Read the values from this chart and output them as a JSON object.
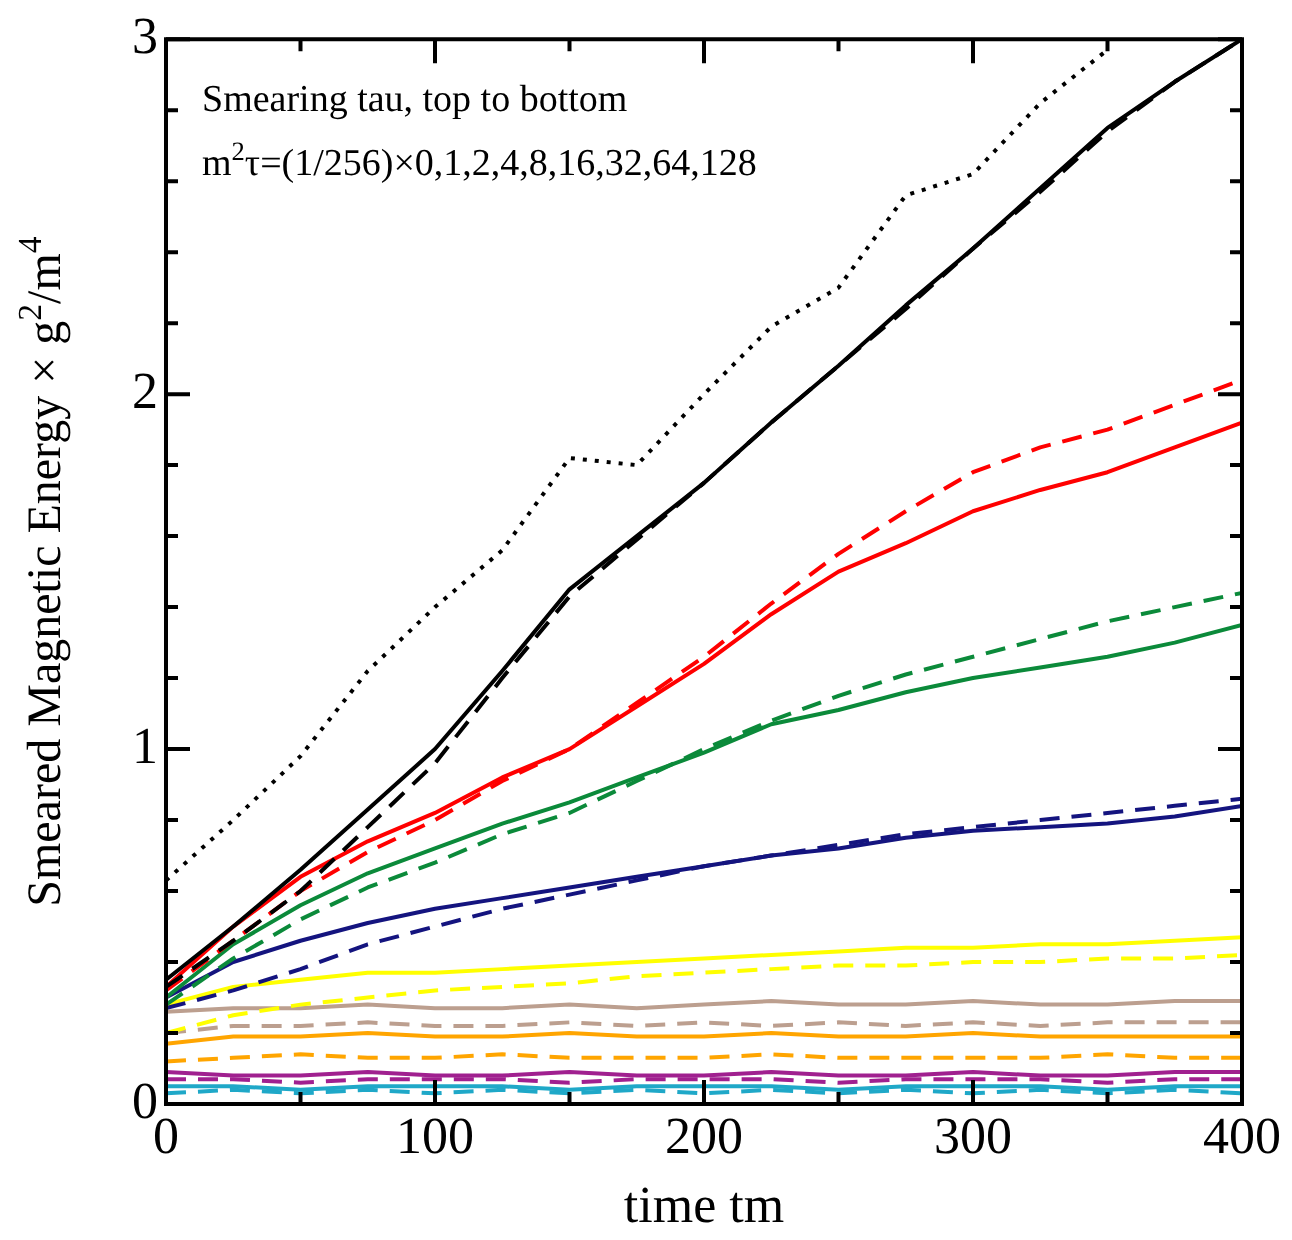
{
  "chart_data": {
    "type": "line",
    "xlabel": "time tm",
    "ylabel": "Smeared Magnetic Energy × g$^{2}$/m$^{4}$",
    "annotations": [
      "Smearing tau, top to bottom",
      "m$^{2}$τ=(1/256)×0,1,2,4,8,16,32,64,128"
    ],
    "x": [
      0,
      25,
      50,
      75,
      100,
      125,
      150,
      175,
      200,
      225,
      250,
      275,
      300,
      325,
      350,
      375,
      400
    ],
    "xlim": [
      0,
      400
    ],
    "ylim": [
      0,
      3
    ],
    "xticks": [
      0,
      {
        "value": 50,
        "label": null
      },
      100,
      {
        "value": 150,
        "label": null
      },
      200,
      {
        "value": 250,
        "label": null
      },
      300,
      {
        "value": 350,
        "label": null
      },
      400
    ],
    "yticks": [
      0,
      {
        "value": 0.2,
        "label": null
      },
      {
        "value": 0.4,
        "label": null
      },
      {
        "value": 0.6,
        "label": null
      },
      {
        "value": 0.8,
        "label": null
      },
      1,
      {
        "value": 1.2,
        "label": null
      },
      {
        "value": 1.4,
        "label": null
      },
      {
        "value": 1.6,
        "label": null
      },
      {
        "value": 1.8,
        "label": null
      },
      2,
      {
        "value": 2.2,
        "label": null
      },
      {
        "value": 2.4,
        "label": null
      },
      {
        "value": 2.6,
        "label": null
      },
      {
        "value": 2.8,
        "label": null
      },
      3
    ],
    "grid": false,
    "legend": false,
    "marker": "none",
    "series": [
      {
        "color": "#000000",
        "line_style": "dotted",
        "values": [
          0.63,
          0.8,
          0.98,
          1.22,
          1.4,
          1.56,
          1.82,
          1.8,
          2.0,
          2.19,
          2.3,
          2.56,
          2.62,
          2.82,
          2.97,
          null,
          null
        ]
      },
      {
        "color": "#000000",
        "line_style": "solid",
        "values": [
          0.35,
          0.5,
          0.66,
          0.83,
          1.0,
          1.22,
          1.45,
          1.6,
          1.75,
          1.92,
          2.08,
          2.25,
          2.41,
          2.58,
          2.75,
          2.88,
          3.0
        ]
      },
      {
        "color": "#000000",
        "line_style": "dashed",
        "values": [
          0.33,
          0.46,
          0.6,
          0.78,
          0.96,
          1.2,
          1.43,
          1.59,
          1.75,
          1.92,
          2.08,
          2.24,
          2.41,
          2.57,
          2.74,
          2.88,
          3.0
        ]
      },
      {
        "color": "#ff0000",
        "line_style": "solid",
        "values": [
          0.33,
          0.5,
          0.64,
          0.74,
          0.82,
          0.92,
          1.0,
          1.12,
          1.24,
          1.38,
          1.5,
          1.58,
          1.67,
          1.73,
          1.78,
          1.85,
          1.92
        ]
      },
      {
        "color": "#ff0000",
        "line_style": "dashed",
        "values": [
          0.32,
          0.46,
          0.6,
          0.71,
          0.8,
          0.91,
          1.0,
          1.13,
          1.26,
          1.41,
          1.55,
          1.67,
          1.78,
          1.85,
          1.9,
          1.97,
          2.04
        ]
      },
      {
        "color": "#0b8a3a",
        "line_style": "solid",
        "values": [
          0.3,
          0.45,
          0.56,
          0.65,
          0.72,
          0.79,
          0.85,
          0.92,
          0.99,
          1.07,
          1.11,
          1.16,
          1.2,
          1.23,
          1.26,
          1.3,
          1.35
        ]
      },
      {
        "color": "#0b8a3a",
        "line_style": "dashed",
        "values": [
          0.28,
          0.41,
          0.52,
          0.61,
          0.68,
          0.76,
          0.82,
          0.91,
          1.0,
          1.08,
          1.15,
          1.21,
          1.26,
          1.31,
          1.36,
          1.4,
          1.44
        ]
      },
      {
        "color": "#14147f",
        "line_style": "solid",
        "values": [
          0.3,
          0.4,
          0.46,
          0.51,
          0.55,
          0.58,
          0.61,
          0.64,
          0.67,
          0.7,
          0.72,
          0.75,
          0.77,
          0.78,
          0.79,
          0.81,
          0.84
        ]
      },
      {
        "color": "#14147f",
        "line_style": "dashed",
        "values": [
          0.27,
          0.32,
          0.38,
          0.45,
          0.5,
          0.55,
          0.59,
          0.63,
          0.67,
          0.7,
          0.73,
          0.76,
          0.78,
          0.8,
          0.82,
          0.84,
          0.86
        ]
      },
      {
        "color": "#ffff00",
        "line_style": "solid",
        "values": [
          0.28,
          0.33,
          0.35,
          0.37,
          0.37,
          0.38,
          0.39,
          0.4,
          0.41,
          0.42,
          0.43,
          0.44,
          0.44,
          0.45,
          0.45,
          0.46,
          0.47
        ]
      },
      {
        "color": "#ffff00",
        "line_style": "dashed",
        "values": [
          0.2,
          0.25,
          0.28,
          0.3,
          0.32,
          0.33,
          0.34,
          0.36,
          0.37,
          0.38,
          0.39,
          0.39,
          0.4,
          0.4,
          0.41,
          0.41,
          0.42
        ]
      },
      {
        "color": "#bc9f8f",
        "line_style": "solid",
        "values": [
          0.26,
          0.27,
          0.27,
          0.28,
          0.27,
          0.27,
          0.28,
          0.27,
          0.28,
          0.29,
          0.28,
          0.28,
          0.29,
          0.28,
          0.28,
          0.29,
          0.29
        ]
      },
      {
        "color": "#bc9f8f",
        "line_style": "dashed",
        "values": [
          0.2,
          0.22,
          0.22,
          0.23,
          0.22,
          0.22,
          0.23,
          0.22,
          0.23,
          0.22,
          0.23,
          0.22,
          0.23,
          0.22,
          0.23,
          0.23,
          0.23
        ]
      },
      {
        "color": "#ffa500",
        "line_style": "solid",
        "values": [
          0.17,
          0.19,
          0.19,
          0.2,
          0.19,
          0.19,
          0.2,
          0.19,
          0.19,
          0.2,
          0.19,
          0.19,
          0.2,
          0.19,
          0.19,
          0.19,
          0.19
        ]
      },
      {
        "color": "#ffa500",
        "line_style": "dashed",
        "values": [
          0.12,
          0.13,
          0.14,
          0.13,
          0.13,
          0.14,
          0.13,
          0.13,
          0.13,
          0.14,
          0.13,
          0.13,
          0.13,
          0.13,
          0.14,
          0.13,
          0.13
        ]
      },
      {
        "color": "#a0208f",
        "line_style": "solid",
        "values": [
          0.09,
          0.08,
          0.08,
          0.09,
          0.08,
          0.08,
          0.09,
          0.08,
          0.08,
          0.09,
          0.08,
          0.08,
          0.09,
          0.08,
          0.08,
          0.09,
          0.09
        ]
      },
      {
        "color": "#a0208f",
        "line_style": "dashed",
        "values": [
          0.07,
          0.07,
          0.06,
          0.07,
          0.07,
          0.07,
          0.06,
          0.07,
          0.07,
          0.07,
          0.06,
          0.07,
          0.07,
          0.07,
          0.06,
          0.07,
          0.07
        ]
      },
      {
        "color": "#1fa8c8",
        "line_style": "solid",
        "values": [
          0.05,
          0.05,
          0.04,
          0.05,
          0.05,
          0.05,
          0.04,
          0.05,
          0.05,
          0.05,
          0.04,
          0.05,
          0.05,
          0.05,
          0.04,
          0.05,
          0.05
        ]
      },
      {
        "color": "#1fa8c8",
        "line_style": "dashed",
        "values": [
          0.03,
          0.04,
          0.03,
          0.04,
          0.03,
          0.04,
          0.03,
          0.04,
          0.03,
          0.04,
          0.03,
          0.04,
          0.03,
          0.04,
          0.03,
          0.04,
          0.03
        ]
      }
    ]
  }
}
